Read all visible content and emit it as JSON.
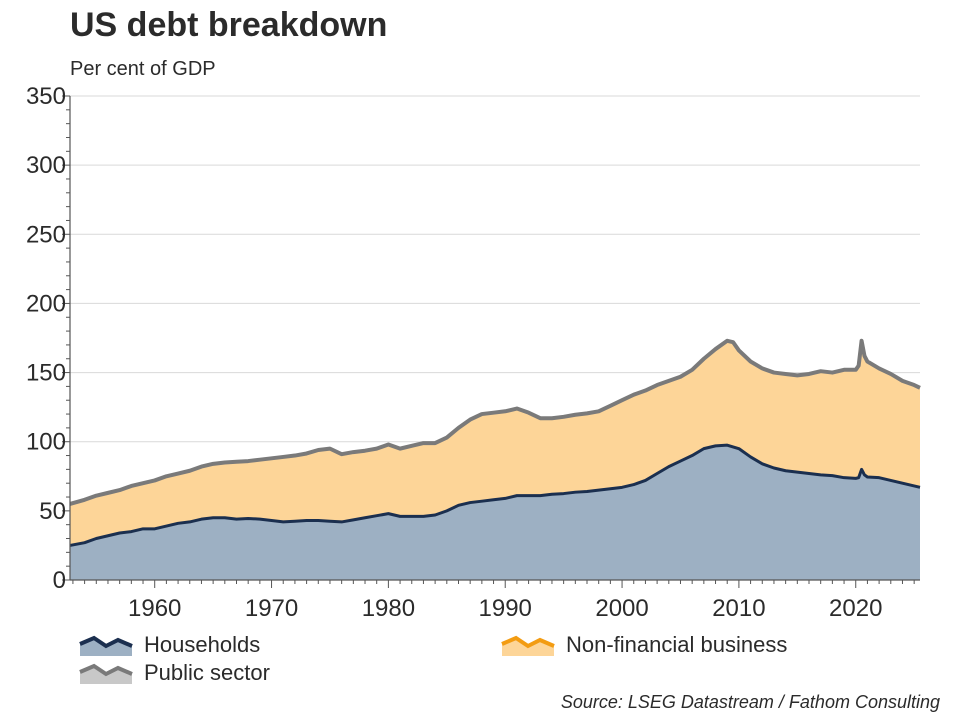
{
  "header": {
    "title": "US debt breakdown",
    "subtitle": "Per cent of GDP"
  },
  "footer": {
    "source": "Source: LSEG Datastream / Fathom Consulting"
  },
  "chart_data": {
    "type": "area",
    "stacked": true,
    "x_range": [
      1952.75,
      2025.5
    ],
    "ylim": [
      0,
      350
    ],
    "y_ticks": [
      0,
      50,
      100,
      150,
      200,
      250,
      300,
      350
    ],
    "x_ticks": [
      1960,
      1970,
      1980,
      1990,
      2000,
      2010,
      2020
    ],
    "grid": true,
    "legend_placement": "bottom",
    "series": [
      {
        "name": "Households",
        "fill_color": "#9db0c3",
        "line_color": "#1b2f4f",
        "points": [
          [
            1952.75,
            25
          ],
          [
            1954,
            27
          ],
          [
            1955,
            30
          ],
          [
            1956,
            32
          ],
          [
            1957,
            34
          ],
          [
            1958,
            35
          ],
          [
            1959,
            37
          ],
          [
            1960,
            37
          ],
          [
            1961,
            39
          ],
          [
            1962,
            41
          ],
          [
            1963,
            42
          ],
          [
            1964,
            44
          ],
          [
            1965,
            45
          ],
          [
            1966,
            45
          ],
          [
            1967,
            44
          ],
          [
            1968,
            44.5
          ],
          [
            1969,
            44
          ],
          [
            1970,
            43
          ],
          [
            1971,
            42
          ],
          [
            1972,
            42.5
          ],
          [
            1973,
            43
          ],
          [
            1974,
            43
          ],
          [
            1975,
            42.5
          ],
          [
            1976,
            42
          ],
          [
            1977,
            43.5
          ],
          [
            1978,
            45
          ],
          [
            1979,
            46.5
          ],
          [
            1980,
            48
          ],
          [
            1981,
            46
          ],
          [
            1982,
            46
          ],
          [
            1983,
            46
          ],
          [
            1984,
            47
          ],
          [
            1985,
            50
          ],
          [
            1986,
            54
          ],
          [
            1987,
            56
          ],
          [
            1988,
            57
          ],
          [
            1989,
            58
          ],
          [
            1990,
            59
          ],
          [
            1991,
            61
          ],
          [
            1992,
            61
          ],
          [
            1993,
            61
          ],
          [
            1994,
            62
          ],
          [
            1995,
            62.5
          ],
          [
            1996,
            63.5
          ],
          [
            1997,
            64
          ],
          [
            1998,
            65
          ],
          [
            1999,
            66
          ],
          [
            2000,
            67
          ],
          [
            2001,
            69
          ],
          [
            2002,
            72
          ],
          [
            2003,
            77
          ],
          [
            2004,
            82
          ],
          [
            2005,
            86
          ],
          [
            2006,
            90
          ],
          [
            2007,
            95
          ],
          [
            2008,
            97
          ],
          [
            2009,
            97.5
          ],
          [
            2010,
            95
          ],
          [
            2011,
            89
          ],
          [
            2012,
            84
          ],
          [
            2013,
            81
          ],
          [
            2014,
            79
          ],
          [
            2015,
            78
          ],
          [
            2016,
            77
          ],
          [
            2017,
            76
          ],
          [
            2018,
            75.5
          ],
          [
            2019,
            74
          ],
          [
            2020,
            73.5
          ],
          [
            2020.25,
            74
          ],
          [
            2020.5,
            80
          ],
          [
            2020.75,
            76
          ],
          [
            2021,
            74.5
          ],
          [
            2022,
            74
          ],
          [
            2023,
            72
          ],
          [
            2024,
            70
          ],
          [
            2025,
            68
          ],
          [
            2025.5,
            67
          ]
        ]
      },
      {
        "name": "Non-financial business",
        "fill_color": "#fdd598",
        "line_color": "#f39c12",
        "points": [
          [
            1952.75,
            30
          ],
          [
            1955,
            32
          ],
          [
            1960,
            36
          ],
          [
            1965,
            40
          ],
          [
            1970,
            46
          ],
          [
            1975,
            53
          ],
          [
            1980,
            50
          ],
          [
            1985,
            57
          ],
          [
            1990,
            64
          ],
          [
            1995,
            57
          ],
          [
            2000,
            65
          ],
          [
            2005,
            64
          ],
          [
            2010,
            70
          ],
          [
            2015,
            72
          ],
          [
            2020,
            78
          ],
          [
            2025.5,
            72
          ]
        ]
      },
      {
        "name": "Public sector",
        "fill_color": "#c8c8c8",
        "line_color": "#7a7a7a",
        "total_points": [
          [
            1952.75,
            55
          ],
          [
            1954,
            58
          ],
          [
            1955,
            61
          ],
          [
            1956,
            63
          ],
          [
            1957,
            65
          ],
          [
            1958,
            68
          ],
          [
            1959,
            70
          ],
          [
            1960,
            72
          ],
          [
            1961,
            75
          ],
          [
            1962,
            77
          ],
          [
            1963,
            79
          ],
          [
            1964,
            82
          ],
          [
            1965,
            84
          ],
          [
            1966,
            85
          ],
          [
            1967,
            85.5
          ],
          [
            1968,
            86
          ],
          [
            1969,
            87
          ],
          [
            1970,
            88
          ],
          [
            1971,
            89
          ],
          [
            1972,
            90
          ],
          [
            1973,
            91.5
          ],
          [
            1974,
            94
          ],
          [
            1975,
            95
          ],
          [
            1976,
            91
          ],
          [
            1977,
            92.5
          ],
          [
            1978,
            93.5
          ],
          [
            1979,
            95
          ],
          [
            1980,
            98
          ],
          [
            1981,
            95
          ],
          [
            1982,
            97
          ],
          [
            1983,
            99
          ],
          [
            1984,
            99
          ],
          [
            1985,
            103
          ],
          [
            1986,
            110
          ],
          [
            1987,
            116
          ],
          [
            1988,
            120
          ],
          [
            1989,
            121
          ],
          [
            1990,
            122
          ],
          [
            1991,
            124
          ],
          [
            1992,
            121
          ],
          [
            1993,
            117
          ],
          [
            1994,
            117
          ],
          [
            1995,
            118
          ],
          [
            1996,
            119.5
          ],
          [
            1997,
            120.5
          ],
          [
            1998,
            122
          ],
          [
            1999,
            126
          ],
          [
            2000,
            130
          ],
          [
            2001,
            134
          ],
          [
            2002,
            137
          ],
          [
            2003,
            141
          ],
          [
            2004,
            144
          ],
          [
            2005,
            147
          ],
          [
            2006,
            152
          ],
          [
            2007,
            160
          ],
          [
            2008,
            167
          ],
          [
            2009,
            173
          ],
          [
            2009.5,
            172
          ],
          [
            2010,
            166
          ],
          [
            2011,
            158
          ],
          [
            2012,
            153
          ],
          [
            2013,
            150
          ],
          [
            2014,
            149
          ],
          [
            2015,
            148
          ],
          [
            2016,
            149
          ],
          [
            2017,
            151
          ],
          [
            2018,
            150
          ],
          [
            2019,
            152
          ],
          [
            2020,
            152
          ],
          [
            2020.25,
            155
          ],
          [
            2020.5,
            173
          ],
          [
            2020.75,
            162
          ],
          [
            2021,
            158
          ],
          [
            2022,
            153
          ],
          [
            2023,
            149
          ],
          [
            2024,
            144
          ],
          [
            2025,
            141
          ],
          [
            2025.5,
            139
          ]
        ]
      }
    ]
  }
}
